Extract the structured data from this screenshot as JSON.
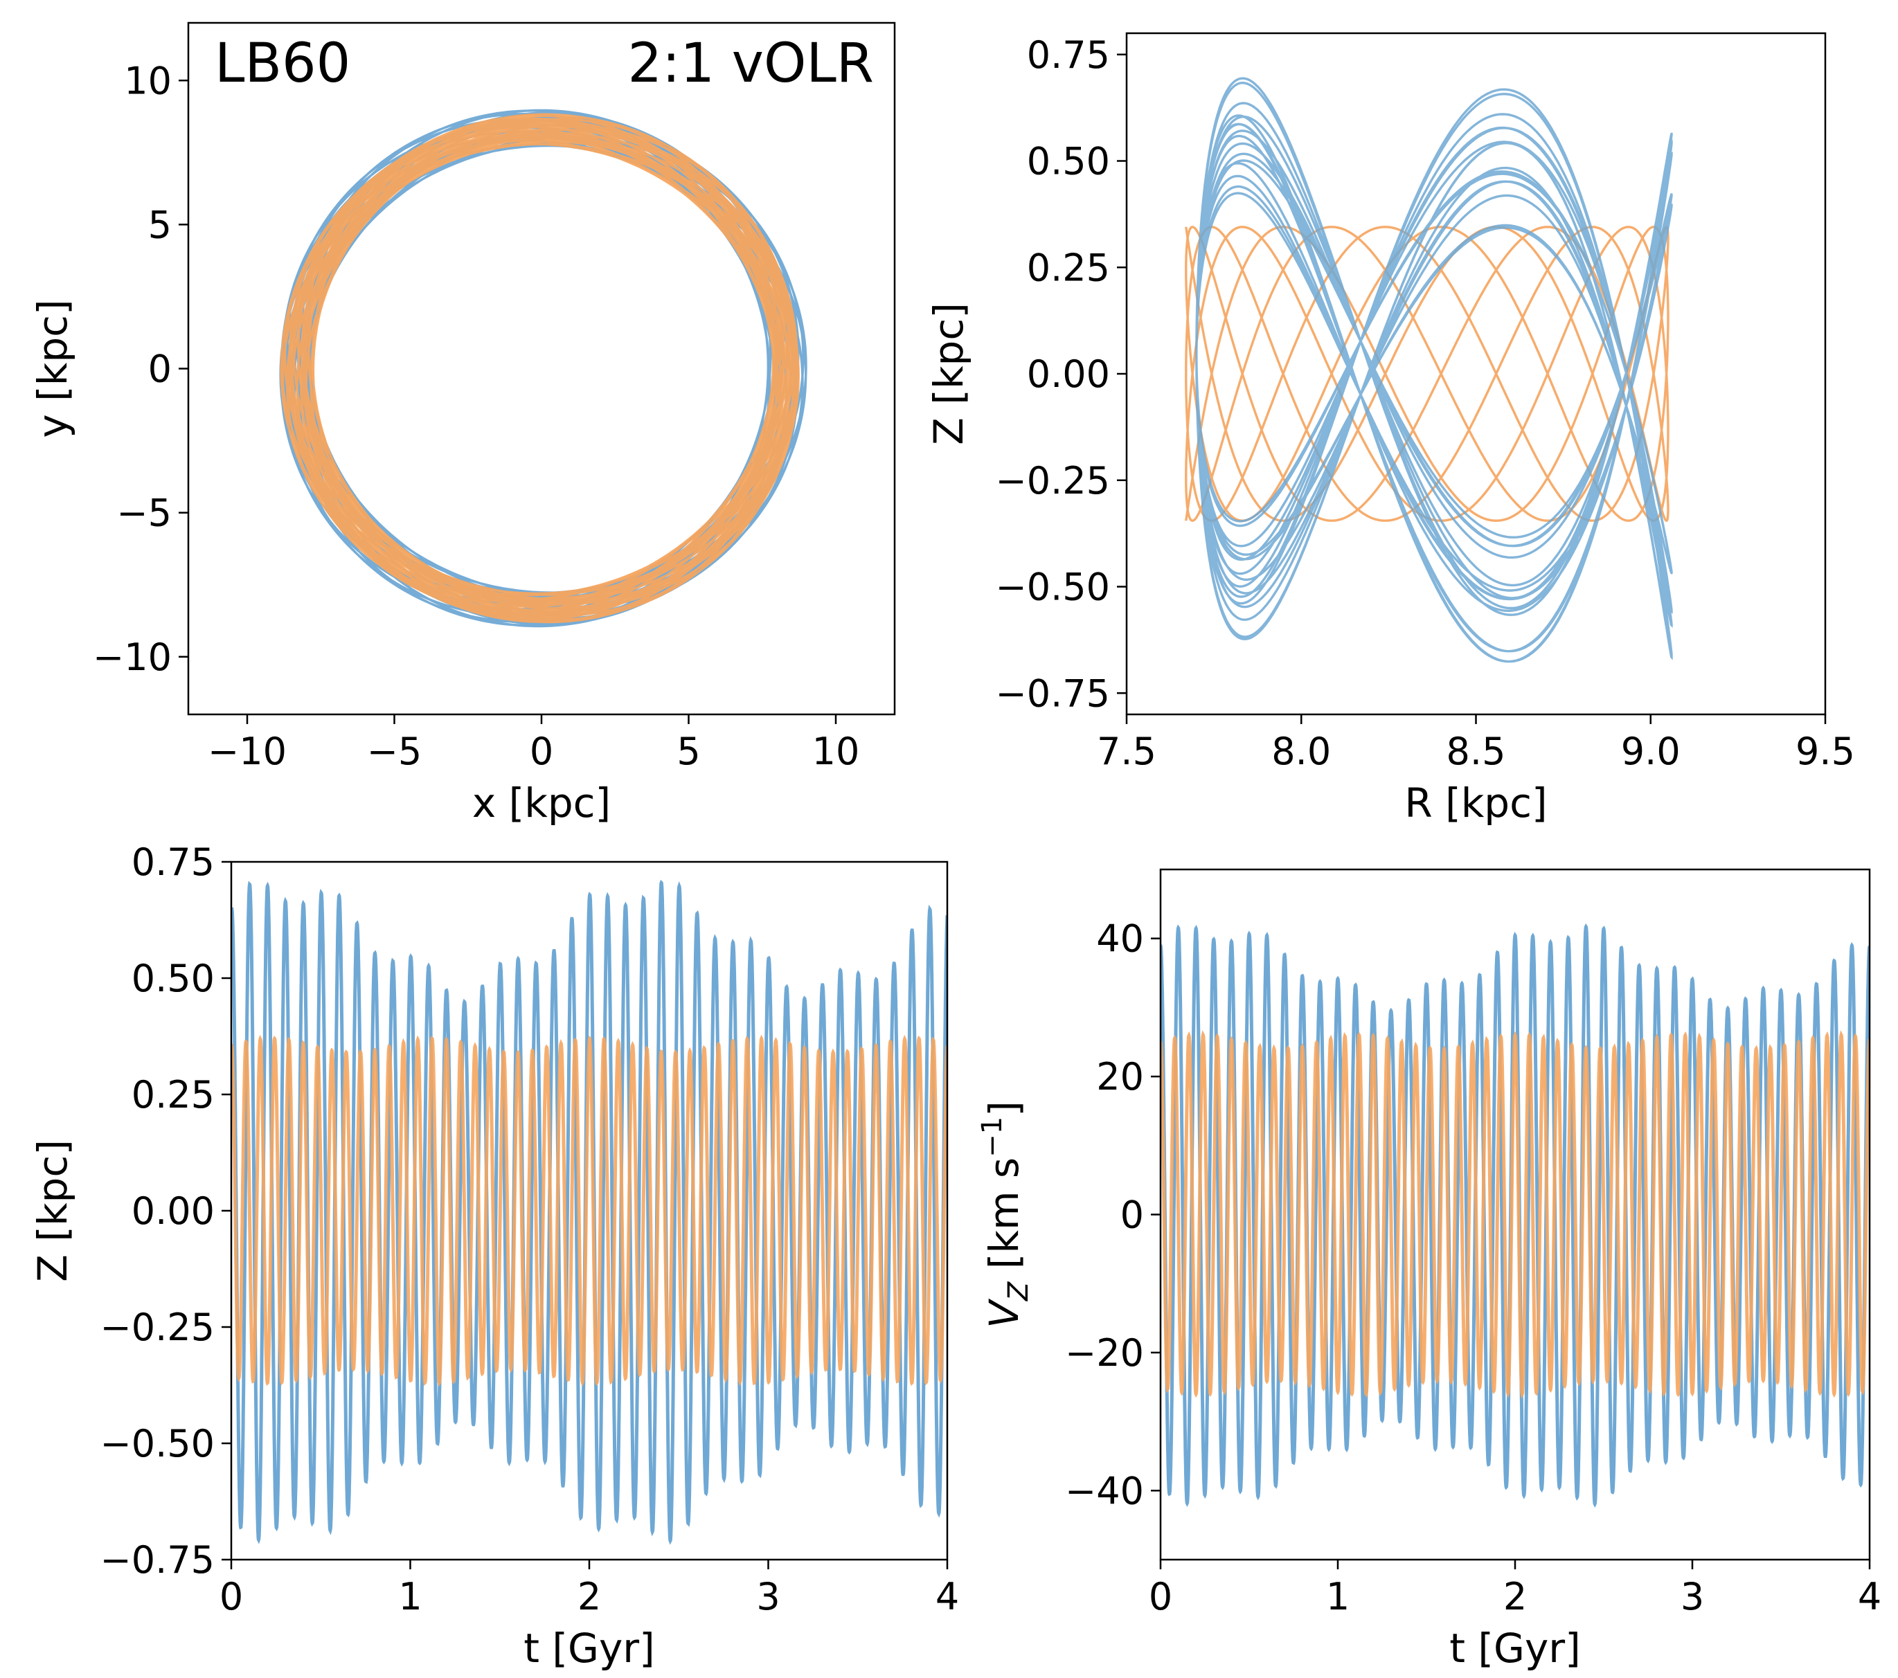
{
  "colors": {
    "blue": "#6fa8d4",
    "orange": "#f5a55f"
  },
  "chart_data": [
    {
      "id": "xy",
      "type": "line",
      "xlabel": "x [kpc]",
      "ylabel": "y [kpc]",
      "xlim": [
        -12,
        12
      ],
      "ylim": [
        -12,
        12
      ],
      "xticks": [
        -10,
        -5,
        0,
        5,
        10
      ],
      "xtick_labels": [
        "−10",
        "−5",
        "0",
        "5",
        "10"
      ],
      "yticks": [
        -10,
        -5,
        0,
        5,
        10
      ],
      "ytick_labels": [
        "−10",
        "−5",
        "0",
        "5",
        "10"
      ],
      "annotations": [
        "LB60",
        "2:1 vOLR"
      ],
      "series": [
        {
          "name": "blue orbit",
          "color": "#6fa8d4",
          "R_range_kpc": [
            7.7,
            9.05
          ],
          "Z_amp_kpc": 0.62
        },
        {
          "name": "orange orbit",
          "color": "#f5a55f",
          "R_range_kpc": [
            7.65,
            9.05
          ],
          "Z_amp_kpc": 0.35
        }
      ]
    },
    {
      "id": "rz",
      "type": "line",
      "xlabel": "R [kpc]",
      "ylabel": "Z [kpc]",
      "xlim": [
        7.5,
        9.5
      ],
      "ylim": [
        -0.8,
        0.8
      ],
      "xticks": [
        7.5,
        8.0,
        8.5,
        9.0,
        9.5
      ],
      "xtick_labels": [
        "7.5",
        "8.0",
        "8.5",
        "9.0",
        "9.5"
      ],
      "yticks": [
        -0.75,
        -0.5,
        -0.25,
        0,
        0.25,
        0.5,
        0.75
      ],
      "ytick_labels": [
        "−0.75",
        "−0.50",
        "−0.25",
        "0.00",
        "0.25",
        "0.50",
        "0.75"
      ]
    },
    {
      "id": "tz",
      "type": "line",
      "xlabel": "t [Gyr]",
      "ylabel": "Z [kpc]",
      "xlim": [
        0,
        4
      ],
      "ylim": [
        -0.75,
        0.75
      ],
      "xticks": [
        0,
        1,
        2,
        3,
        4
      ],
      "xtick_labels": [
        "0",
        "1",
        "2",
        "3",
        "4"
      ],
      "yticks": [
        -0.75,
        -0.5,
        -0.25,
        0,
        0.25,
        0.5,
        0.75
      ],
      "ytick_labels": [
        "−0.75",
        "−0.50",
        "−0.25",
        "0.00",
        "0.25",
        "0.50",
        "0.75"
      ],
      "series": [
        {
          "name": "blue",
          "color": "#6fa8d4",
          "amplitude_range": [
            0.48,
            0.69
          ],
          "period_gyr": 0.1
        },
        {
          "name": "orange",
          "color": "#f5a55f",
          "amplitude_range": [
            0.34,
            0.37
          ],
          "period_gyr": 0.08
        }
      ]
    },
    {
      "id": "tv",
      "type": "line",
      "xlabel": "t [Gyr]",
      "ylabel": "V_Z [km s^-1]",
      "xlim": [
        0,
        4
      ],
      "ylim": [
        -50,
        50
      ],
      "xticks": [
        0,
        1,
        2,
        3,
        4
      ],
      "xtick_labels": [
        "0",
        "1",
        "2",
        "3",
        "4"
      ],
      "yticks": [
        -40,
        -20,
        0,
        20,
        40
      ],
      "ytick_labels": [
        "−40",
        "−20",
        "0",
        "20",
        "40"
      ],
      "series": [
        {
          "name": "blue",
          "color": "#6fa8d4",
          "amplitude_range": [
            31,
            41
          ],
          "period_gyr": 0.1
        },
        {
          "name": "orange",
          "color": "#f5a55f",
          "amplitude_range": [
            24,
            26
          ],
          "period_gyr": 0.08
        }
      ]
    }
  ]
}
